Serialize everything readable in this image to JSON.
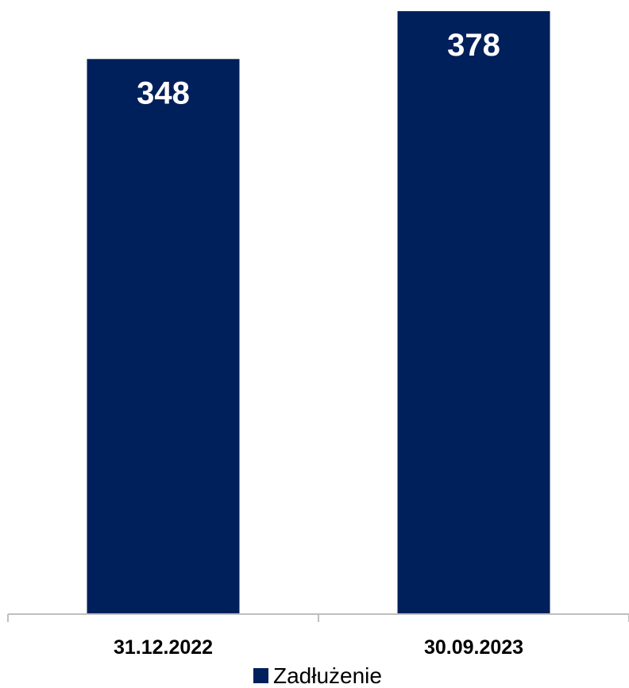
{
  "chart_data": {
    "type": "bar",
    "categories": [
      "31.12.2022",
      "30.09.2023"
    ],
    "series": [
      {
        "name": "Zadłużenie",
        "values": [
          348,
          378
        ],
        "color": "#00205B"
      }
    ],
    "data_labels": [
      "348",
      "378"
    ],
    "ylim": [
      0,
      385
    ],
    "legend": {
      "position": "bottom",
      "entries": [
        "Zadłużenie"
      ]
    },
    "grid": false
  }
}
